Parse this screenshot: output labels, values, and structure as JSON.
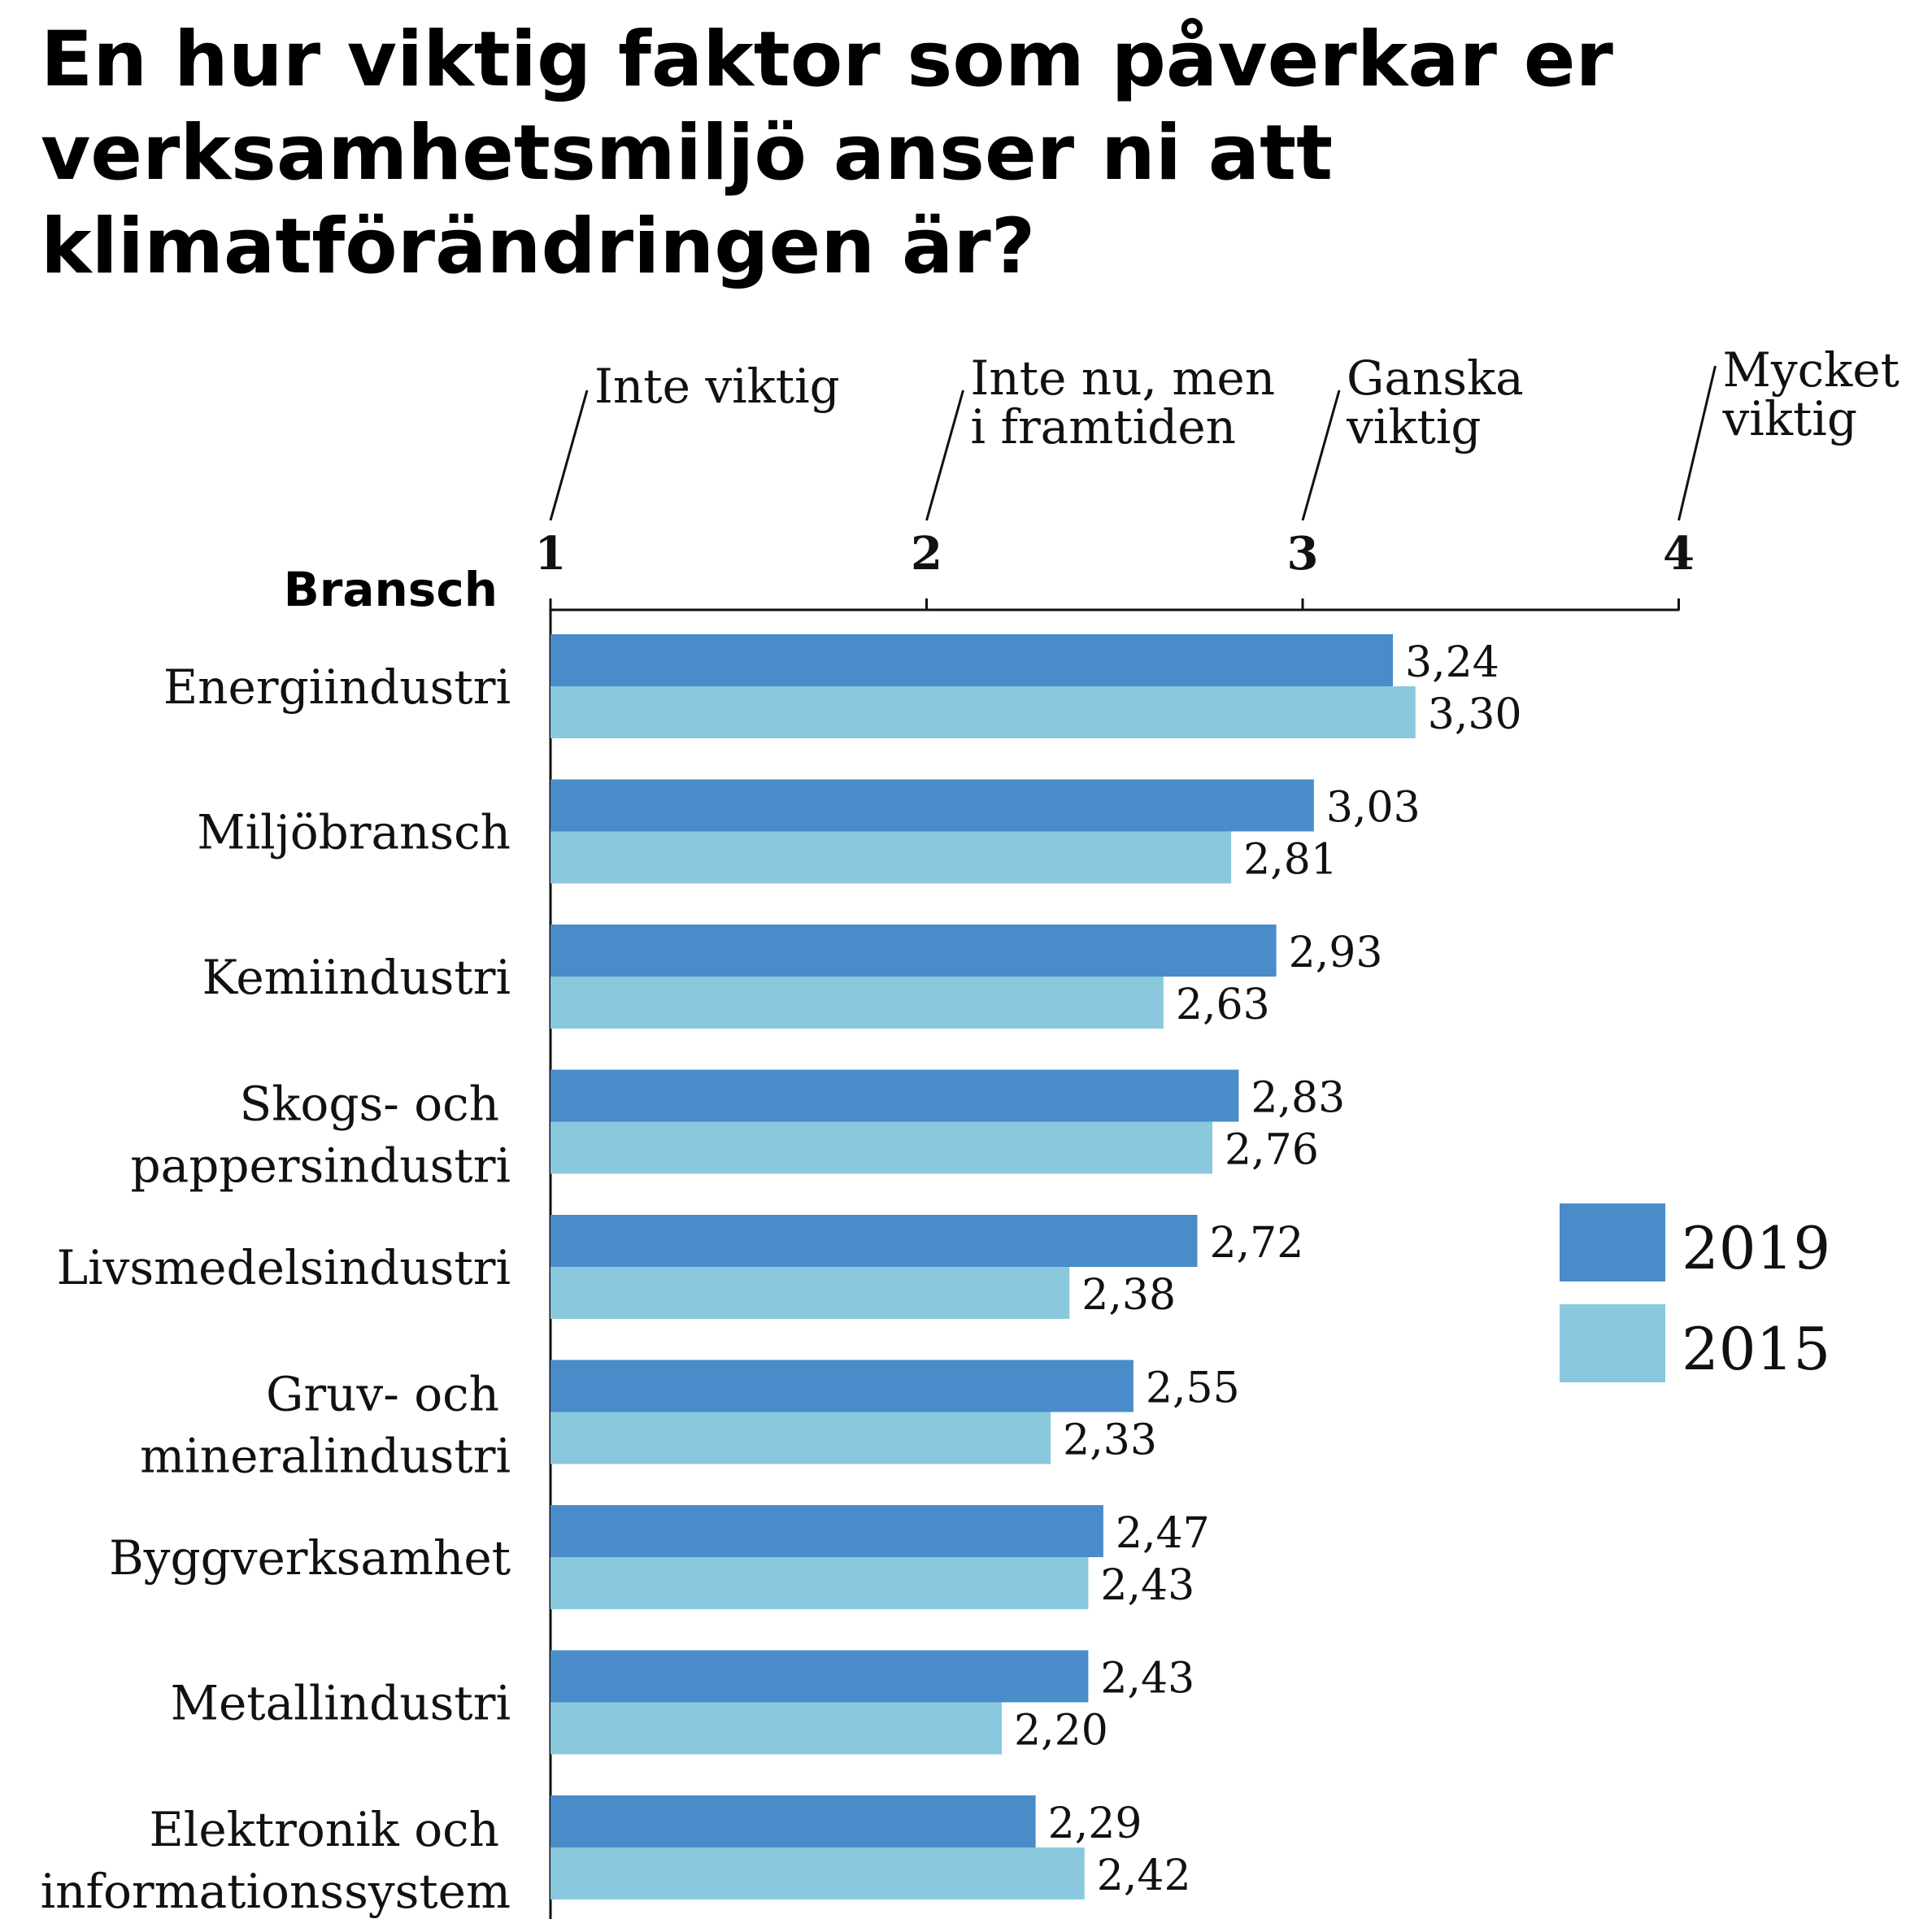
{
  "chart_data": {
    "type": "bar",
    "orientation": "horizontal",
    "title": "En hur viktig faktor som påverkar er verksamhetsmiljö anser ni att klimatförändringen är?",
    "title_lines": [
      "En hur viktig faktor som påverkar er",
      "verksamhetsmiljö anser ni att",
      "klimatförändringen är?"
    ],
    "ylabel": "Bransch",
    "xlim": [
      1,
      4
    ],
    "ticks": [
      "1",
      "2",
      "3",
      "4"
    ],
    "scale_labels": [
      {
        "tick": 1,
        "lines": [
          "Inte viktig"
        ]
      },
      {
        "tick": 2,
        "lines": [
          "Inte nu, men",
          "i framtiden"
        ]
      },
      {
        "tick": 3,
        "lines": [
          "Ganska",
          "viktig"
        ]
      },
      {
        "tick": 4,
        "lines": [
          "Mycket",
          "viktig"
        ]
      }
    ],
    "categories": [
      [
        "Energiindustri"
      ],
      [
        "Miljöbransch"
      ],
      [
        "Kemiindustri"
      ],
      [
        "Skogs- och",
        "pappersindustri"
      ],
      [
        "Livsmedelsindustri"
      ],
      [
        "Gruv- och",
        "mineralindustri"
      ],
      [
        "Byggverksamhet"
      ],
      [
        "Metallindustri"
      ],
      [
        "Elektronik och",
        "informationssystem"
      ]
    ],
    "series": [
      {
        "name": "2019",
        "color": "#4a8cc9",
        "values": [
          3.24,
          3.03,
          2.93,
          2.83,
          2.72,
          2.55,
          2.47,
          2.43,
          2.29
        ],
        "labels": [
          "3,24",
          "3,03",
          "2,93",
          "2,83",
          "2,72",
          "2,55",
          "2,47",
          "2,43",
          "2,29"
        ]
      },
      {
        "name": "2015",
        "color": "#8ac8de",
        "values": [
          3.3,
          2.81,
          2.63,
          2.76,
          2.38,
          2.33,
          2.43,
          2.2,
          2.42
        ],
        "labels": [
          "3,30",
          "2,81",
          "2,63",
          "2,76",
          "2,38",
          "2,33",
          "2,43",
          "2,20",
          "2,42"
        ]
      }
    ],
    "legend_position": "right",
    "grid": false
  }
}
